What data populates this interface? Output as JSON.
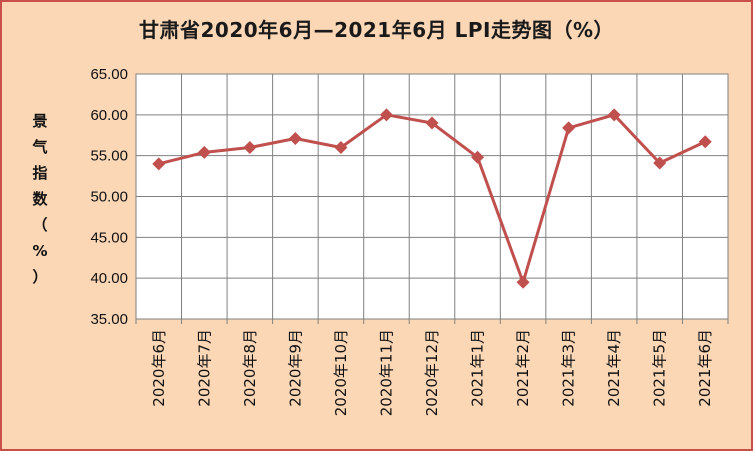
{
  "chart_data": {
    "type": "line",
    "title": "甘肃省2020年6月—2021年6月 LPI走势图（%）",
    "ylabel": "景气指数（%）",
    "xlabel": "",
    "categories": [
      "2020年6月",
      "2020年7月",
      "2020年8月",
      "2020年9月",
      "2020年10月",
      "2020年11月",
      "2020年12月",
      "2021年1月",
      "2021年2月",
      "2021年3月",
      "2021年4月",
      "2021年5月",
      "2021年6月"
    ],
    "series": [
      {
        "values": [
          54.0,
          55.4,
          56.0,
          57.1,
          56.0,
          60.0,
          59.0,
          54.8,
          39.5,
          58.4,
          60.0,
          54.1,
          56.7
        ]
      }
    ],
    "ylim": [
      35.0,
      65.0
    ],
    "yticks": [
      "35.00",
      "40.00",
      "45.00",
      "50.00",
      "55.00",
      "60.00",
      "65.00"
    ],
    "grid": true,
    "colors": {
      "line": "#c0504d",
      "marker": "#c0504d",
      "background": "#fcd7b6",
      "plot_area": "#ffffff",
      "border": "#c9504a"
    }
  }
}
